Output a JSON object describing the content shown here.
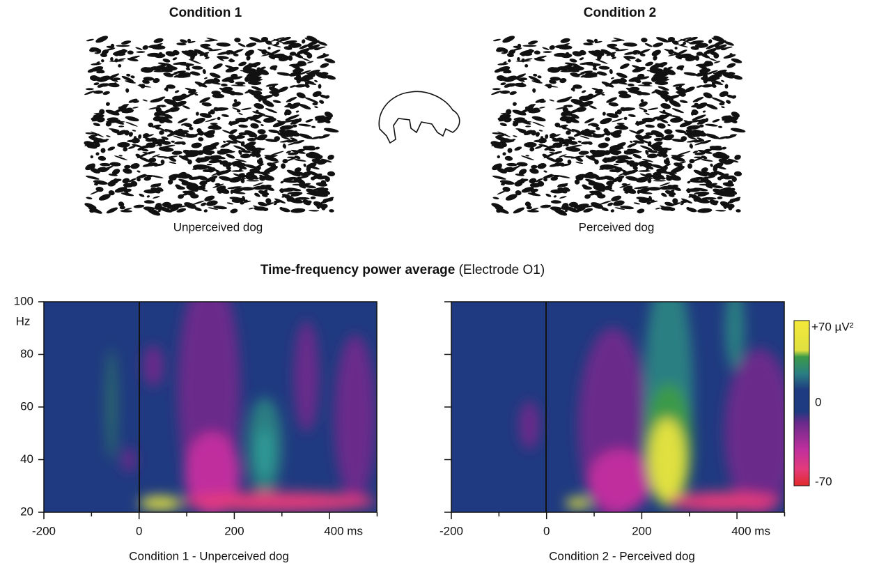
{
  "top_panel": {
    "left": {
      "title": "Condition 1",
      "caption": "Unperceived dog"
    },
    "right": {
      "title": "Condition 2",
      "caption": "Perceived dog"
    }
  },
  "bottom_panel": {
    "title_bold": "Time-frequency power average",
    "title_rest": "(Electrode O1)",
    "y_axis": {
      "unit": "Hz",
      "ticks": [
        "100",
        "80",
        "60",
        "40",
        "20"
      ]
    },
    "x_axis": {
      "ticks": [
        "-200",
        "0",
        "200",
        "400 ms"
      ]
    },
    "left_caption": "Condition 1 - Unperceived dog",
    "right_caption": "Condition 2 - Perceived dog",
    "colorbar": {
      "top": "+70 µV²",
      "middle": "0",
      "bottom": "-70"
    }
  }
}
